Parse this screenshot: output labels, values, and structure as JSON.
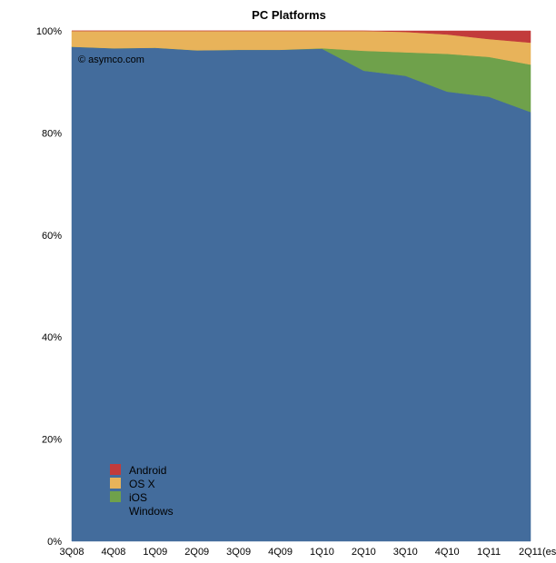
{
  "chart_data": {
    "type": "area",
    "title": "PC Platforms",
    "credit": "© asymco.com",
    "stacked": true,
    "normalized": true,
    "categories": [
      "3Q08",
      "4Q08",
      "1Q09",
      "2Q09",
      "3Q09",
      "4Q09",
      "1Q10",
      "2Q10",
      "3Q10",
      "4Q10",
      "1Q11",
      "2Q11"
    ],
    "x_suffix_label": "(est)",
    "y_ticks": [
      "0%",
      "20%",
      "40%",
      "60%",
      "80%",
      "100%"
    ],
    "ylim": [
      0,
      100
    ],
    "grid": false,
    "legend_position": "bottom-left",
    "series": [
      {
        "name": "Windows",
        "color": "#436c9c",
        "values": [
          96.9,
          96.6,
          96.7,
          96.2,
          96.3,
          96.3,
          96.5,
          92.2,
          91.2,
          88.1,
          87.1,
          84.1
        ]
      },
      {
        "name": "iOS",
        "color": "#6fa14b",
        "values": [
          0,
          0,
          0,
          0,
          0,
          0,
          0.1,
          3.9,
          4.6,
          7.4,
          7.8,
          9.3
        ]
      },
      {
        "name": "OS X",
        "color": "#e8b35a",
        "values": [
          3.1,
          3.4,
          3.3,
          3.8,
          3.7,
          3.7,
          3.4,
          3.9,
          4.0,
          3.8,
          3.5,
          4.3
        ]
      },
      {
        "name": "Android",
        "color": "#c23b3b",
        "values": [
          0,
          0,
          0,
          0,
          0,
          0,
          0,
          0,
          0.2,
          0.7,
          1.6,
          2.3
        ]
      }
    ],
    "legend": [
      {
        "name": "Android",
        "color": "#c23b3b",
        "swatch": true
      },
      {
        "name": "OS X",
        "color": "#e8b35a",
        "swatch": true
      },
      {
        "name": "iOS",
        "color": "#6fa14b",
        "swatch": true
      },
      {
        "name": "Windows",
        "color": "#436c9c",
        "swatch": false
      }
    ]
  }
}
